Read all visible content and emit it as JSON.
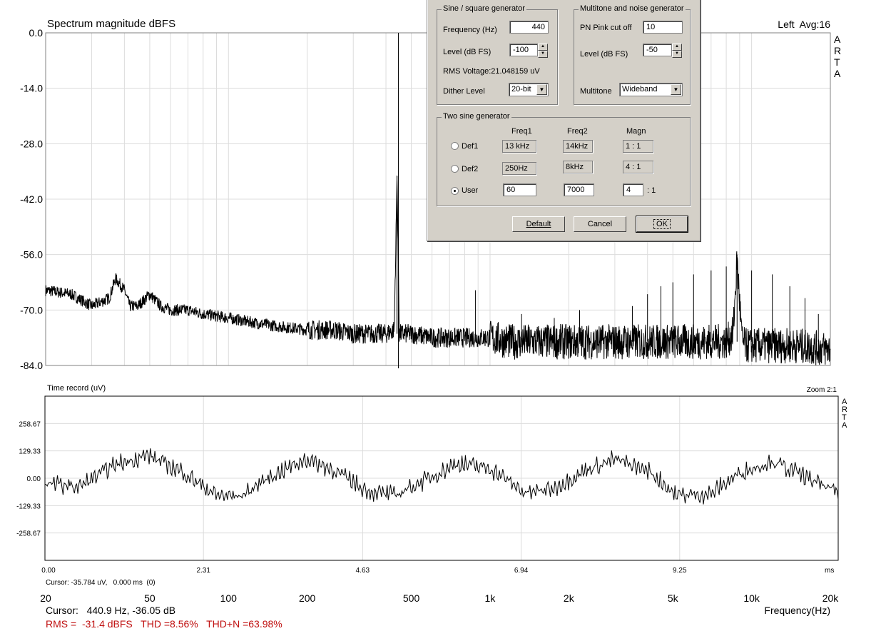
{
  "spectrum": {
    "title": "Spectrum magnitude dBFS",
    "channel_info": "Left  Avg:16",
    "brand_letters": [
      "A",
      "R",
      "T",
      "A"
    ],
    "ytick_labels": [
      "0.0",
      "-14.0",
      "-28.0",
      "-42.0",
      "-56.0",
      "-70.0",
      "-84.0"
    ],
    "xtick_labels": [
      "20",
      "50",
      "100",
      "200",
      "500",
      "1k",
      "2k",
      "5k",
      "10k",
      "20k"
    ],
    "xlabel": "Frequency(Hz)",
    "cursor": "Cursor:   440.9 Hz, -36.05 dB",
    "stats": "RMS =  -31.4 dBFS   THD =8.56%   THD+N =63.98%",
    "stats_color": "#c01010"
  },
  "time_record": {
    "title": "Time record (uV)",
    "zoom": "Zoom 2:1",
    "brand_letters": [
      "A",
      "R",
      "T",
      "A"
    ],
    "ytick_labels": [
      "258.67",
      "129.33",
      "0.00",
      "-129.33",
      "-258.67"
    ],
    "xtick_labels": [
      "0.00",
      "2.31",
      "4.63",
      "6.94",
      "9.25"
    ],
    "xunit": "ms",
    "cursor": "Cursor: -35.784 uV,   0.000 ms  (0)"
  },
  "chart_data": [
    {
      "type": "line",
      "title": "Spectrum magnitude dBFS",
      "xlabel": "Frequency(Hz)",
      "ylabel": "",
      "x_scale": "log",
      "xlim": [
        20,
        20000
      ],
      "ylim": [
        -84,
        0
      ],
      "yticks": [
        0,
        -14,
        -28,
        -42,
        -56,
        -70,
        -84
      ],
      "xticks": [
        20,
        50,
        100,
        200,
        500,
        1000,
        2000,
        5000,
        10000,
        20000
      ],
      "grid": true,
      "series": [
        {
          "x": [
            20,
            25,
            30,
            35,
            37,
            40,
            42,
            45,
            50,
            55,
            60,
            70,
            80,
            100,
            120,
            150,
            200,
            250,
            300,
            350,
            400,
            430,
            436,
            440.9,
            446,
            450,
            500,
            600,
            700,
            800,
            1000,
            1200,
            1500,
            2000,
            3000,
            4000,
            5000,
            6000,
            7000,
            8000,
            8500,
            8800,
            9000,
            9200,
            9500,
            10000,
            12000,
            15000,
            20000
          ],
          "y": [
            -65,
            -66,
            -69,
            -67,
            -62,
            -65,
            -69,
            -69,
            -66,
            -69,
            -70,
            -70,
            -71,
            -72,
            -73,
            -74,
            -75,
            -75,
            -76,
            -76,
            -76,
            -75,
            -55,
            -36.05,
            -57,
            -76,
            -76,
            -77,
            -77,
            -77,
            -77,
            -78,
            -78,
            -78,
            -78,
            -78,
            -78,
            -78,
            -78,
            -78,
            -76,
            -57,
            -68,
            -78,
            -79,
            -79,
            -79,
            -79,
            -80
          ],
          "harmonic_peaks": [
            [
              880,
              -65
            ],
            [
              1320,
              -71
            ],
            [
              1760,
              -72
            ],
            [
              2200,
              -70
            ],
            [
              3500,
              -69
            ],
            [
              4000,
              -66
            ],
            [
              4500,
              -64
            ],
            [
              5000,
              -63
            ],
            [
              6000,
              -61
            ],
            [
              7000,
              -60
            ],
            [
              8000,
              -59
            ],
            [
              8800,
              -56
            ],
            [
              10000,
              -60
            ],
            [
              12000,
              -61
            ],
            [
              14000,
              -64
            ],
            [
              16000,
              -67
            ],
            [
              18000,
              -71
            ]
          ]
        }
      ],
      "cursor": {
        "x": 440.9,
        "y": -36.05
      }
    },
    {
      "type": "line",
      "title": "Time record (uV)",
      "xlabel": "ms",
      "ylabel": "",
      "xlim": [
        0,
        11.56
      ],
      "ylim": [
        -388,
        388
      ],
      "yticks": [
        258.67,
        129.33,
        0.0,
        -129.33,
        -258.67
      ],
      "xticks": [
        0.0,
        2.31,
        4.63,
        6.94,
        9.25
      ],
      "grid": true,
      "series": [
        {
          "x": [
            0,
            0.5,
            1.0,
            1.5,
            2.0,
            2.5,
            2.85,
            3.3,
            3.8,
            4.2,
            4.7,
            5.1,
            5.6,
            6.0,
            6.5,
            7.0,
            7.4,
            7.9,
            8.3,
            8.8,
            9.2,
            9.7,
            10.1,
            10.6,
            11.0,
            11.56
          ],
          "y": [
            -25,
            -40,
            60,
            110,
            30,
            -80,
            -85,
            10,
            90,
            40,
            -60,
            -80,
            0,
            70,
            45,
            -70,
            -50,
            40,
            90,
            35,
            -80,
            -75,
            20,
            80,
            20,
            -70
          ]
        }
      ]
    }
  ],
  "dialog": {
    "sine_group": {
      "title": "Sine / square generator",
      "frequency_label": "Frequency (Hz)",
      "frequency_value": "440",
      "level_label": "Level (dB FS)",
      "level_value": "-100",
      "rms_text": "RMS Voltage:21.048159 uV",
      "dither_label": "Dither Level",
      "dither_value": "20-bit"
    },
    "multitone_group": {
      "title": "Multitone and noise generator",
      "pink_label": "PN Pink cut off",
      "pink_value": "10",
      "level_label": "Level (dB FS)",
      "level_value": "-50",
      "multitone_label": "Multitone",
      "multitone_value": "Wideband"
    },
    "two_sine_group": {
      "title": "Two sine generator",
      "col_freq1": "Freq1",
      "col_freq2": "Freq2",
      "col_magn": "Magn",
      "rows": [
        {
          "label": "Def1",
          "freq1": "13 kHz",
          "freq2": "14kHz",
          "magn": "1 : 1",
          "selected": false
        },
        {
          "label": "Def2",
          "freq1": "250Hz",
          "freq2": "8kHz",
          "magn": "4 : 1",
          "selected": false
        },
        {
          "label": "User",
          "freq1": "60",
          "freq2": "7000",
          "magn": "4",
          "magn_suffix": ": 1",
          "selected": true
        }
      ]
    },
    "buttons": {
      "default": "Default",
      "cancel": "Cancel",
      "ok": "OK"
    }
  }
}
